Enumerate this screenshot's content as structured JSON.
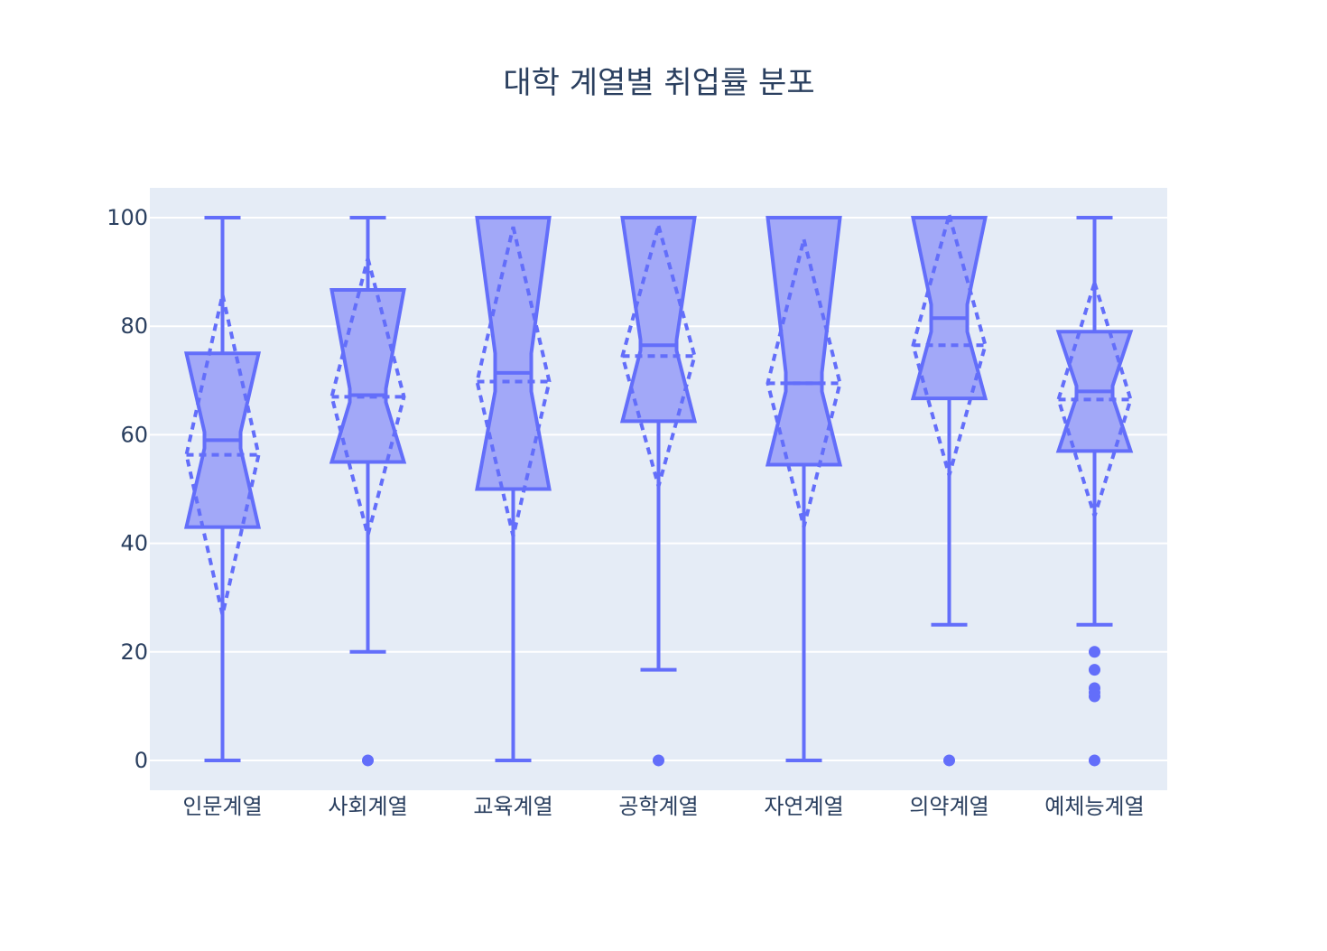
{
  "chart_data": {
    "type": "box",
    "title": "대학 계열별 취업률 분포",
    "xlabel": "",
    "ylabel": "",
    "ylim": [
      -5.5,
      105.5
    ],
    "yticks": [
      0,
      20,
      40,
      60,
      80,
      100
    ],
    "grid": true,
    "legend": "none",
    "notched": true,
    "boxmean": "sd",
    "colors": {
      "box": "#636efa",
      "box_fill": "#a2a8f8",
      "plot_bg": "#e5ecf6",
      "grid": "#ffffff",
      "text": "#2a3f5f"
    },
    "categories": [
      "인문계열",
      "사회계열",
      "교육계열",
      "공학계열",
      "자연계열",
      "의약계열",
      "예체능계열"
    ],
    "boxes": [
      {
        "category": "인문계열",
        "lower_fence": 0,
        "q1": 43,
        "median": 59,
        "q3": 75,
        "upper_fence": 100,
        "notch_low": 57.5,
        "notch_high": 60.5,
        "mean": 56.3,
        "sd": 29.5,
        "outliers": []
      },
      {
        "category": "사회계열",
        "lower_fence": 20,
        "q1": 55,
        "median": 67.3,
        "q3": 86.7,
        "upper_fence": 100,
        "notch_low": 66,
        "notch_high": 68.5,
        "mean": 67,
        "sd": 25.5,
        "outliers": [
          0
        ]
      },
      {
        "category": "교육계열",
        "lower_fence": 0,
        "q1": 50,
        "median": 71.4,
        "q3": 100,
        "upper_fence": 100,
        "notch_low": 68,
        "notch_high": 75,
        "mean": 69.8,
        "sd": 28.5,
        "outliers": []
      },
      {
        "category": "공학계열",
        "lower_fence": 16.7,
        "q1": 62.5,
        "median": 76.5,
        "q3": 100,
        "upper_fence": 100,
        "notch_low": 75.5,
        "notch_high": 77.5,
        "mean": 74.5,
        "sd": 24,
        "outliers": [
          0
        ]
      },
      {
        "category": "자연계열",
        "lower_fence": 0,
        "q1": 54.5,
        "median": 69.5,
        "q3": 100,
        "upper_fence": 100,
        "notch_low": 68,
        "notch_high": 71.5,
        "mean": 69.5,
        "sd": 26.5,
        "outliers": []
      },
      {
        "category": "의약계열",
        "lower_fence": 25,
        "q1": 66.7,
        "median": 81.5,
        "q3": 100,
        "upper_fence": 100,
        "notch_low": 79,
        "notch_high": 84,
        "mean": 76.5,
        "sd": 24,
        "outliers": [
          0
        ]
      },
      {
        "category": "예체능계열",
        "lower_fence": 25,
        "q1": 57,
        "median": 68,
        "q3": 79,
        "upper_fence": 100,
        "notch_low": 67,
        "notch_high": 69,
        "mean": 66.5,
        "sd": 21.5,
        "outliers": [
          20,
          16.7,
          13.3,
          12.5,
          11.8,
          0
        ]
      }
    ]
  }
}
